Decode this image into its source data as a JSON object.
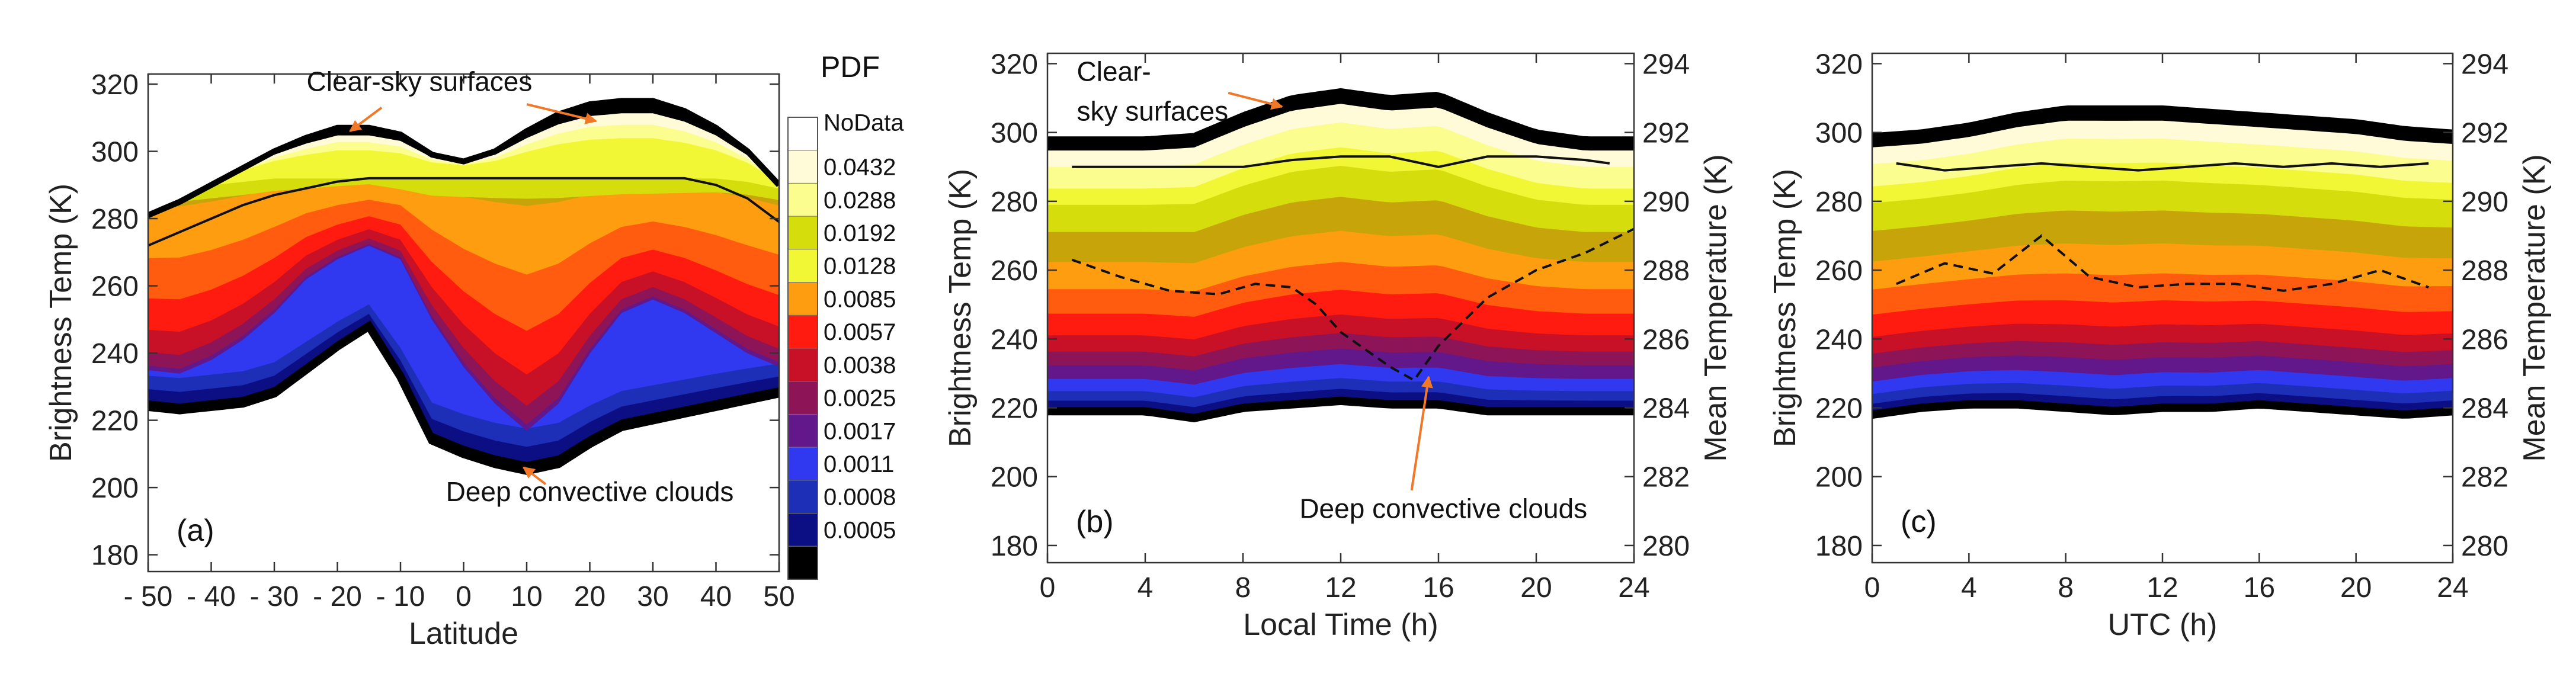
{
  "colors": {
    "bands": [
      "#000000",
      "#0c0f83",
      "#1d2fb7",
      "#3039f0",
      "#62178a",
      "#8e1458",
      "#c81027",
      "#ff1b10",
      "#ff5c0f",
      "#ff9d10",
      "#c7a40a",
      "#d5dd0c",
      "#f1f734",
      "#fbfd8f",
      "#fffbd8",
      "#ffffff"
    ],
    "line": "#111111",
    "arrow": "#f07828"
  },
  "colorbar": {
    "title": "PDF",
    "labels": [
      "NoData",
      "0.0432",
      "0.0288",
      "0.0192",
      "0.0128",
      "0.0085",
      "0.0057",
      "0.0038",
      "0.0025",
      "0.0017",
      "0.0011",
      "0.0008",
      "0.0005"
    ]
  },
  "chart_data": [
    {
      "type": "heatmap",
      "panel_label": "(a)",
      "xlabel": "Latitude",
      "ylabel": "Brightness Temp (K)",
      "xlim": [
        -50,
        50
      ],
      "ylim": [
        175,
        323
      ],
      "xticks": [
        -50,
        -40,
        -30,
        -20,
        -10,
        0,
        10,
        20,
        30,
        40,
        50
      ],
      "xtick_labels": [
        "- 50",
        "- 40",
        "- 30",
        "- 20",
        "- 10",
        "0",
        "10",
        "20",
        "30",
        "40",
        "50"
      ],
      "yticks": [
        180,
        200,
        220,
        240,
        260,
        280,
        300,
        320
      ],
      "ytick_labels": [
        "180",
        "200",
        "220",
        "240",
        "260",
        "280",
        "300",
        "320"
      ],
      "x": [
        -50,
        -45,
        -40,
        -35,
        -30,
        -25,
        -20,
        -15,
        -10,
        -5,
        0,
        5,
        10,
        15,
        20,
        25,
        30,
        35,
        40,
        45,
        50
      ],
      "upper_edge": [
        281,
        285,
        290,
        295,
        300,
        304,
        307,
        307,
        305,
        299,
        297,
        300,
        306,
        311,
        314,
        315,
        315,
        312,
        307,
        300,
        290
      ],
      "lower_edge": [
        224,
        223,
        224,
        225,
        228,
        235,
        242,
        248,
        233,
        214,
        210,
        207,
        205,
        207,
        213,
        218,
        220,
        222,
        224,
        226,
        228
      ],
      "mode_center": [
        291,
        292,
        293,
        294,
        295,
        295,
        295,
        295,
        295,
        295,
        295,
        295,
        295,
        295,
        295,
        295,
        295,
        295,
        295,
        294,
        292
      ],
      "deep_tail": [
        235,
        234,
        238,
        244,
        252,
        262,
        268,
        272,
        268,
        250,
        236,
        225,
        217,
        225,
        240,
        252,
        256,
        252,
        246,
        240,
        236
      ],
      "mean_line": [
        272,
        276,
        280,
        284,
        287,
        289,
        291,
        292,
        292,
        292,
        292,
        292,
        292,
        292,
        292,
        292,
        292,
        292,
        290,
        286,
        279
      ],
      "annotations": [
        {
          "text": "Clear-sky surfaces",
          "x": 0,
          "y": 318
        },
        {
          "text": "Deep convective clouds",
          "x": 20,
          "y": 196
        }
      ]
    },
    {
      "type": "heatmap",
      "panel_label": "(b)",
      "xlabel": "Local Time (h)",
      "ylabel": "Brightness Temp (K)",
      "y2label": "Mean Temperature (K)",
      "xlim": [
        0,
        24
      ],
      "ylim": [
        175,
        323
      ],
      "y2lim": [
        279.5,
        294.3
      ],
      "xticks": [
        0,
        4,
        8,
        12,
        16,
        20,
        24
      ],
      "xtick_labels": [
        "0",
        "4",
        "8",
        "12",
        "16",
        "20",
        "24"
      ],
      "yticks": [
        180,
        200,
        220,
        240,
        260,
        280,
        300,
        320
      ],
      "ytick_labels": [
        "180",
        "200",
        "220",
        "240",
        "260",
        "280",
        "300",
        "320"
      ],
      "y2ticks": [
        280,
        282,
        284,
        286,
        288,
        290,
        292,
        294
      ],
      "y2tick_labels": [
        "280",
        "282",
        "284",
        "286",
        "288",
        "290",
        "292",
        "294"
      ],
      "x": [
        0,
        2,
        4,
        6,
        8,
        10,
        12,
        14,
        16,
        18,
        20,
        22,
        24
      ],
      "upper_edge": [
        298,
        298,
        298,
        299,
        305,
        310,
        312,
        310,
        311,
        305,
        300,
        298,
        298
      ],
      "lower_edge": [
        219,
        219,
        219,
        217,
        220,
        221,
        222,
        221,
        221,
        219,
        219,
        219,
        219
      ],
      "mean_line_x": [
        1,
        4,
        6,
        8,
        10,
        12,
        14,
        16,
        18,
        20,
        22,
        23
      ],
      "mean_line": [
        291,
        291,
        291,
        291,
        291.2,
        291.3,
        291.3,
        291,
        291.3,
        291.3,
        291.2,
        291.1
      ],
      "dashed_x": [
        1,
        3,
        5,
        7,
        8.5,
        10,
        11,
        12,
        14,
        15,
        16,
        18,
        20,
        22,
        24
      ],
      "dashed": [
        288.3,
        287.8,
        287.4,
        287.3,
        287.6,
        287.5,
        287,
        286.2,
        285.2,
        284.8,
        285.8,
        287.2,
        288,
        288.5,
        289.2
      ],
      "annotations": [
        {
          "text": "Clear-",
          "x": 1.2,
          "y": 315
        },
        {
          "text": "sky surfaces",
          "x": 1.2,
          "y": 304
        },
        {
          "text": "Deep convective clouds",
          "x": 10,
          "y": 188
        }
      ]
    },
    {
      "type": "heatmap",
      "panel_label": "(c)",
      "xlabel": "UTC (h)",
      "ylabel": "Brightness Temp (K)",
      "y2label": "Mean Temperature (K)",
      "xlim": [
        0,
        24
      ],
      "ylim": [
        175,
        323
      ],
      "y2lim": [
        279.5,
        294.3
      ],
      "xticks": [
        0,
        4,
        8,
        12,
        16,
        20,
        24
      ],
      "xtick_labels": [
        "0",
        "4",
        "8",
        "12",
        "16",
        "20",
        "24"
      ],
      "yticks": [
        180,
        200,
        220,
        240,
        260,
        280,
        300,
        320
      ],
      "ytick_labels": [
        "180",
        "200",
        "220",
        "240",
        "260",
        "280",
        "300",
        "320"
      ],
      "y2ticks": [
        280,
        282,
        284,
        286,
        288,
        290,
        292,
        294
      ],
      "y2tick_labels": [
        "280",
        "282",
        "284",
        "286",
        "288",
        "290",
        "292",
        "294"
      ],
      "x": [
        0,
        2,
        4,
        6,
        8,
        10,
        12,
        14,
        16,
        18,
        20,
        22,
        24
      ],
      "upper_edge": [
        299,
        300,
        302,
        305,
        307,
        307,
        307,
        306,
        305,
        304,
        303,
        301,
        300
      ],
      "lower_edge": [
        218,
        220,
        221,
        221,
        220,
        219,
        220,
        220,
        221,
        220,
        219,
        218,
        219
      ],
      "mean_line_x": [
        1,
        3,
        5,
        7,
        9,
        11,
        13,
        15,
        17,
        19,
        21,
        23
      ],
      "mean_line": [
        291.1,
        290.9,
        291,
        291.1,
        291,
        290.9,
        291,
        291.1,
        291,
        291.1,
        291,
        291.1
      ],
      "dashed_x": [
        1,
        3,
        5,
        7,
        9,
        11,
        13,
        15,
        17,
        19,
        21,
        23
      ],
      "dashed": [
        287.6,
        288.2,
        287.9,
        289,
        287.8,
        287.5,
        287.6,
        287.6,
        287.4,
        287.6,
        288,
        287.5
      ],
      "annotations": []
    }
  ]
}
